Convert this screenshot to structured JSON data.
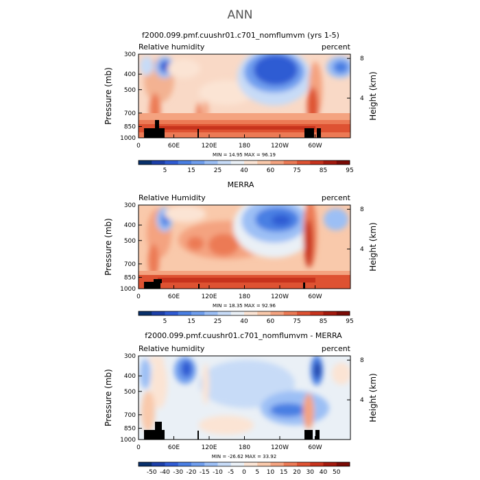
{
  "page": {
    "title": "ANN"
  },
  "chart_data": [
    {
      "type": "heatmap",
      "title": "f2000.099.pmf.cuushr01.c701_nomflumvm (yrs 1-5)",
      "variable_label": "Relative humidity",
      "units_label": "percent",
      "xlabel": "",
      "ylabel": "Pressure (mb)",
      "ylabel_right": "Height (km)",
      "x_ticks": [
        "0",
        "60E",
        "120E",
        "180",
        "120W",
        "60W"
      ],
      "y_ticks": [
        "300",
        "400",
        "500",
        "700",
        "850",
        "1000"
      ],
      "y_right_ticks": [
        "8",
        "4"
      ],
      "stats": "MIN =    14.95   MAX =    96.19",
      "colorbar": {
        "labels": [
          "5",
          "15",
          "25",
          "40",
          "60",
          "75",
          "85",
          "95"
        ],
        "colors": [
          "#08306b",
          "#1c3fa8",
          "#2f5bd3",
          "#4a7fe3",
          "#6f9eee",
          "#9cbff5",
          "#c7dbf7",
          "#eaf0f6",
          "#fbe4d4",
          "#f9c9ab",
          "#f4a380",
          "#ec7a55",
          "#de5232",
          "#c7331d",
          "#a3190d",
          "#7a0a05"
        ]
      },
      "min": 14.95,
      "max": 96.19
    },
    {
      "type": "heatmap",
      "title": "MERRA",
      "variable_label": "Relative Humidity",
      "units_label": "percent",
      "xlabel": "",
      "ylabel": "Pressure (mb)",
      "ylabel_right": "Height (km)",
      "x_ticks": [
        "0",
        "60E",
        "120E",
        "180",
        "120W",
        "60W"
      ],
      "y_ticks": [
        "300",
        "400",
        "500",
        "700",
        "850",
        "1000"
      ],
      "y_right_ticks": [
        "8",
        "4"
      ],
      "stats": "MIN =    18.35   MAX =    92.96",
      "colorbar": {
        "labels": [
          "5",
          "15",
          "25",
          "40",
          "60",
          "75",
          "85",
          "95"
        ],
        "colors": [
          "#08306b",
          "#1c3fa8",
          "#2f5bd3",
          "#4a7fe3",
          "#6f9eee",
          "#9cbff5",
          "#c7dbf7",
          "#eaf0f6",
          "#fbe4d4",
          "#f9c9ab",
          "#f4a380",
          "#ec7a55",
          "#de5232",
          "#c7331d",
          "#a3190d",
          "#7a0a05"
        ]
      },
      "min": 18.35,
      "max": 92.96
    },
    {
      "type": "heatmap",
      "title": "f2000.099.pmf.cuushr01.c701_nomflumvm - MERRA",
      "variable_label": "Relative humidity",
      "units_label": "percent",
      "xlabel": "",
      "ylabel": "Pressure (mb)",
      "ylabel_right": "Height (km)",
      "x_ticks": [
        "0",
        "60E",
        "120E",
        "180",
        "120W",
        "60W"
      ],
      "y_ticks": [
        "300",
        "400",
        "500",
        "700",
        "850",
        "1000"
      ],
      "y_right_ticks": [
        "8",
        "4"
      ],
      "stats": "MIN =   -26.62   MAX =    33.92",
      "colorbar": {
        "labels": [
          "-50",
          "-40",
          "-30",
          "-20",
          "-15",
          "-10",
          "-5",
          "0",
          "5",
          "10",
          "15",
          "20",
          "30",
          "40",
          "50"
        ],
        "colors": [
          "#08306b",
          "#1c3fa8",
          "#2f5bd3",
          "#4a7fe3",
          "#6f9eee",
          "#9cbff5",
          "#c7dbf7",
          "#eaf0f6",
          "#fbe4d4",
          "#f9c9ab",
          "#f4a380",
          "#ec7a55",
          "#de5232",
          "#c7331d",
          "#a3190d",
          "#7a0a05"
        ]
      },
      "min": -26.62,
      "max": 33.92
    }
  ]
}
